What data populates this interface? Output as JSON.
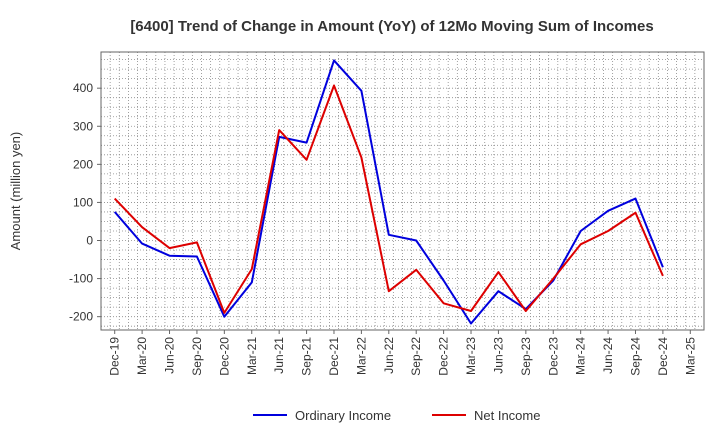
{
  "chart_data": {
    "type": "line",
    "title": "[6400]  Trend of Change in Amount (YoY) of 12Mo Moving Sum of Incomes",
    "xlabel": "",
    "ylabel": "Amount (million yen)",
    "ylim": [
      -235,
      495
    ],
    "yticks": [
      -200,
      -100,
      0,
      100,
      200,
      300,
      400
    ],
    "grid": true,
    "legend_position": "bottom",
    "categories": [
      "Dec-19",
      "Mar-20",
      "Jun-20",
      "Sep-20",
      "Dec-20",
      "Mar-21",
      "Jun-21",
      "Sep-21",
      "Dec-21",
      "Mar-22",
      "Jun-22",
      "Sep-22",
      "Dec-22",
      "Mar-23",
      "Jun-23",
      "Sep-23",
      "Dec-23",
      "Mar-24",
      "Jun-24",
      "Sep-24",
      "Dec-24",
      "Mar-25"
    ],
    "series": [
      {
        "name": "Ordinary Income",
        "color": "#0000dd",
        "values": [
          75,
          -8,
          -40,
          -42,
          -200,
          -110,
          272,
          257,
          473,
          393,
          15,
          0,
          -105,
          -218,
          -133,
          -180,
          -105,
          25,
          78,
          110,
          -70,
          null
        ]
      },
      {
        "name": "Net Income",
        "color": "#dd0000",
        "values": [
          110,
          35,
          -20,
          -5,
          -190,
          -75,
          290,
          212,
          407,
          218,
          -133,
          -77,
          -165,
          -185,
          -83,
          -185,
          -100,
          -10,
          25,
          73,
          -93,
          null
        ]
      }
    ]
  }
}
